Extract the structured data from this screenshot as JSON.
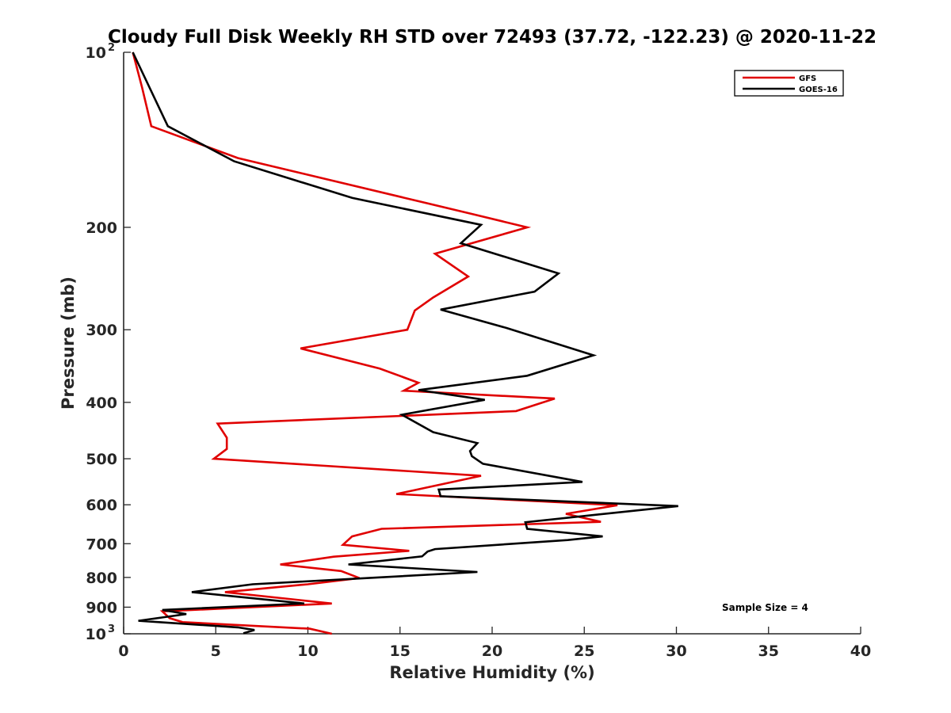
{
  "chart_data": {
    "type": "line",
    "title": "Cloudy Full Disk Weekly RH STD over 72493 (37.72, -122.23) @ 2020-11-22",
    "xlabel": "Relative Humidity (%)",
    "ylabel": "Pressure (mb)",
    "xlim": [
      0,
      40
    ],
    "ylim": [
      100,
      1000
    ],
    "y_scale": "log",
    "y_reversed": true,
    "grid": false,
    "legend_position": "top-right",
    "annotation": "Sample Size = 4",
    "x_ticks": [
      "0",
      "5",
      "10",
      "15",
      "20",
      "25",
      "30",
      "35",
      "40"
    ],
    "x_tick_values": [
      0,
      5,
      10,
      15,
      20,
      25,
      30,
      35,
      40
    ],
    "y_ticks": [
      {
        "value": 100,
        "base": "10",
        "exp": "2"
      },
      {
        "value": 200,
        "label": "200"
      },
      {
        "value": 300,
        "label": "300"
      },
      {
        "value": 400,
        "label": "400"
      },
      {
        "value": 500,
        "label": "500"
      },
      {
        "value": 600,
        "label": "600"
      },
      {
        "value": 700,
        "label": "700"
      },
      {
        "value": 800,
        "label": "800"
      },
      {
        "value": 900,
        "label": "900"
      },
      {
        "value": 1000,
        "base": "10",
        "exp": "3"
      }
    ],
    "series": [
      {
        "name": "GFS",
        "color": "#e00000",
        "points": [
          [
            0.5,
            100
          ],
          [
            1.0,
            115
          ],
          [
            1.5,
            134
          ],
          [
            6.2,
            152
          ],
          [
            19.0,
            190
          ],
          [
            21.9,
            200
          ],
          [
            16.9,
            222
          ],
          [
            18.7,
            243
          ],
          [
            16.8,
            264
          ],
          [
            15.8,
            278
          ],
          [
            15.4,
            300
          ],
          [
            9.6,
            323
          ],
          [
            13.9,
            350
          ],
          [
            16.0,
            370
          ],
          [
            15.2,
            382
          ],
          [
            23.4,
            394
          ],
          [
            21.3,
            414
          ],
          [
            5.1,
            435
          ],
          [
            5.6,
            460
          ],
          [
            5.6,
            481
          ],
          [
            4.9,
            500
          ],
          [
            19.4,
            535
          ],
          [
            14.8,
            575
          ],
          [
            26.8,
            601
          ],
          [
            24.0,
            622
          ],
          [
            25.9,
            642
          ],
          [
            14.0,
            660
          ],
          [
            12.4,
            680
          ],
          [
            11.9,
            703
          ],
          [
            15.5,
            720
          ],
          [
            11.4,
            737
          ],
          [
            8.5,
            760
          ],
          [
            11.8,
            780
          ],
          [
            12.8,
            802
          ],
          [
            10.0,
            822
          ],
          [
            5.5,
            848
          ],
          [
            11.3,
            887
          ],
          [
            2.1,
            915
          ],
          [
            2.5,
            940
          ],
          [
            3.2,
            955
          ],
          [
            10.1,
            980
          ],
          [
            11.3,
            1000
          ]
        ]
      },
      {
        "name": "GOES-16",
        "color": "#000000",
        "points": [
          [
            0.5,
            100
          ],
          [
            2.4,
            134
          ],
          [
            6.0,
            154
          ],
          [
            12.4,
            178
          ],
          [
            19.4,
            198
          ],
          [
            18.3,
            213
          ],
          [
            23.6,
            240
          ],
          [
            22.3,
            258
          ],
          [
            17.2,
            277
          ],
          [
            20.8,
            298
          ],
          [
            25.5,
            332
          ],
          [
            21.9,
            360
          ],
          [
            16.0,
            381
          ],
          [
            19.6,
            396
          ],
          [
            15.1,
            420
          ],
          [
            16.8,
            450
          ],
          [
            19.2,
            470
          ],
          [
            18.8,
            485
          ],
          [
            18.9,
            495
          ],
          [
            19.5,
            510
          ],
          [
            24.9,
            548
          ],
          [
            17.1,
            565
          ],
          [
            17.2,
            580
          ],
          [
            30.1,
            603
          ],
          [
            21.8,
            643
          ],
          [
            21.9,
            660
          ],
          [
            26.0,
            680
          ],
          [
            24.1,
            690
          ],
          [
            16.9,
            715
          ],
          [
            16.5,
            722
          ],
          [
            16.2,
            736
          ],
          [
            12.2,
            760
          ],
          [
            19.2,
            783
          ],
          [
            13.2,
            802
          ],
          [
            7.0,
            822
          ],
          [
            3.7,
            848
          ],
          [
            9.8,
            887
          ],
          [
            2.1,
            910
          ],
          [
            3.4,
            925
          ],
          [
            0.8,
            950
          ],
          [
            6.2,
            975
          ],
          [
            7.1,
            985
          ],
          [
            6.5,
            998
          ]
        ]
      }
    ]
  }
}
